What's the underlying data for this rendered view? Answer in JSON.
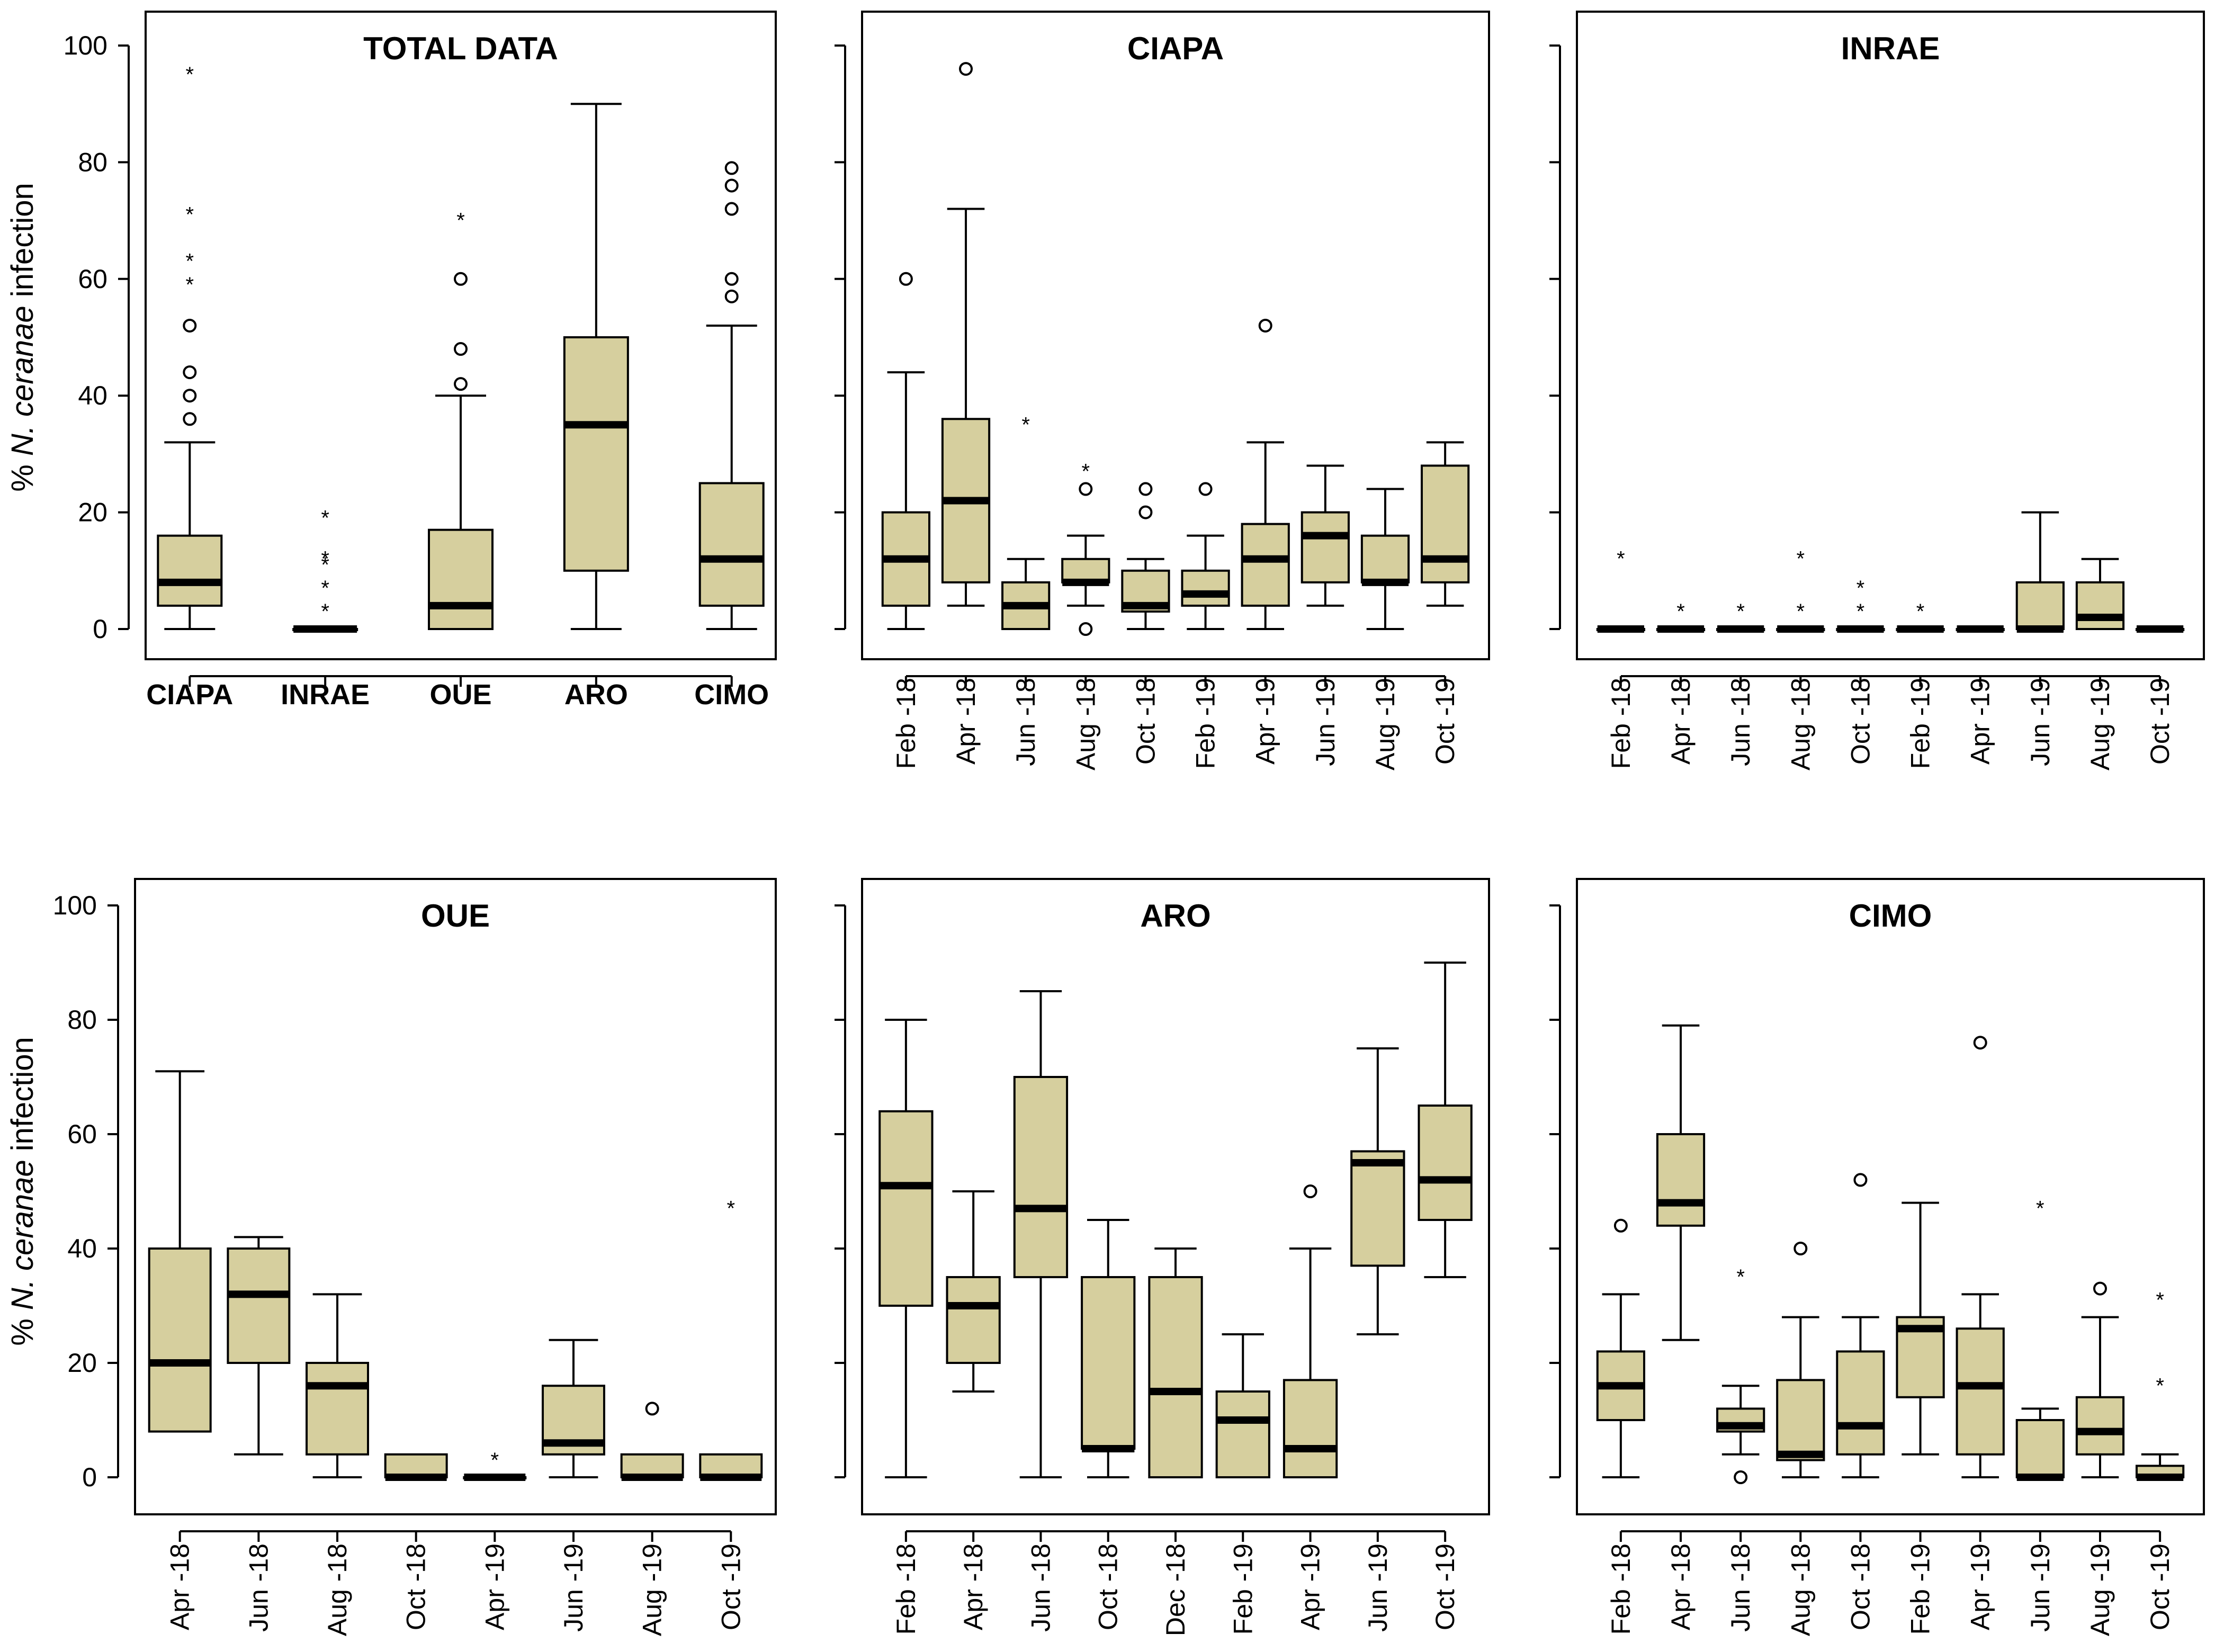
{
  "chart_data": [
    {
      "type": "box",
      "title": "TOTAL DATA",
      "ylabel_prefix": "% ",
      "ylabel_italic": "N. ceranae",
      "ylabel_suffix": " infection",
      "ylim": [
        0,
        100
      ],
      "yticks": [
        "0",
        "20",
        "40",
        "60",
        "80",
        "100"
      ],
      "xlabel_style": "bold",
      "categories": [
        "CIAPA",
        "INRAE",
        "OUE",
        "ARO",
        "CIMO"
      ],
      "boxes": [
        {
          "whislo": 0,
          "q1": 4,
          "med": 8,
          "q3": 16,
          "whishi": 32,
          "circles": [
            36,
            40,
            44,
            52
          ],
          "stars": [
            60,
            64,
            72,
            96
          ]
        },
        {
          "whislo": 0,
          "q1": 0,
          "med": 0,
          "q3": 0,
          "whishi": 0,
          "circles": [],
          "stars": [
            4,
            8,
            12,
            13,
            20
          ]
        },
        {
          "whislo": 0,
          "q1": 0,
          "med": 4,
          "q3": 17,
          "whishi": 40,
          "circles": [
            42,
            48,
            60
          ],
          "stars": [
            71
          ]
        },
        {
          "whislo": 0,
          "q1": 10,
          "med": 35,
          "q3": 50,
          "whishi": 90,
          "circles": [],
          "stars": []
        },
        {
          "whislo": 0,
          "q1": 4,
          "med": 12,
          "q3": 25,
          "whishi": 52,
          "circles": [
            57,
            60,
            72,
            76,
            79
          ],
          "stars": []
        }
      ]
    },
    {
      "type": "box",
      "title": "CIAPA",
      "ylim": [
        0,
        100
      ],
      "categories": [
        "Feb -18",
        "Apr -18",
        "Jun -18",
        "Aug -18",
        "Oct -18",
        "Feb -19",
        "Apr -19",
        "Jun -19",
        "Aug -19",
        "Oct -19"
      ],
      "boxes": [
        {
          "whislo": 0,
          "q1": 4,
          "med": 12,
          "q3": 20,
          "whishi": 44,
          "circles": [
            60
          ],
          "stars": []
        },
        {
          "whislo": 4,
          "q1": 8,
          "med": 22,
          "q3": 36,
          "whishi": 72,
          "circles": [
            96
          ],
          "stars": []
        },
        {
          "whislo": 0,
          "q1": 0,
          "med": 4,
          "q3": 8,
          "whishi": 12,
          "circles": [],
          "stars": [
            36
          ]
        },
        {
          "whislo": 4,
          "q1": 8,
          "med": 8,
          "q3": 12,
          "whishi": 16,
          "circles": [
            0,
            24
          ],
          "stars": [
            28
          ]
        },
        {
          "whislo": 0,
          "q1": 3,
          "med": 4,
          "q3": 10,
          "whishi": 12,
          "circles": [
            20,
            24
          ],
          "stars": []
        },
        {
          "whislo": 0,
          "q1": 4,
          "med": 6,
          "q3": 10,
          "whishi": 16,
          "circles": [
            24
          ],
          "stars": []
        },
        {
          "whislo": 0,
          "q1": 4,
          "med": 12,
          "q3": 18,
          "whishi": 32,
          "circles": [
            52
          ],
          "stars": []
        },
        {
          "whislo": 4,
          "q1": 8,
          "med": 16,
          "q3": 20,
          "whishi": 28,
          "circles": [],
          "stars": []
        },
        {
          "whislo": 0,
          "q1": 8,
          "med": 8,
          "q3": 16,
          "whishi": 24,
          "circles": [],
          "stars": []
        },
        {
          "whislo": 4,
          "q1": 8,
          "med": 12,
          "q3": 28,
          "whishi": 32,
          "circles": [],
          "stars": []
        }
      ]
    },
    {
      "type": "box",
      "title": "INRAE",
      "ylim": [
        0,
        100
      ],
      "categories": [
        "Feb -18",
        "Apr -18",
        "Jun -18",
        "Aug -18",
        "Oct -18",
        "Feb -19",
        "Apr -19",
        "Jun -19",
        "Aug -19",
        "Oct -19"
      ],
      "boxes": [
        {
          "whislo": 0,
          "q1": 0,
          "med": 0,
          "q3": 0,
          "whishi": 0,
          "circles": [],
          "stars": [
            13
          ]
        },
        {
          "whislo": 0,
          "q1": 0,
          "med": 0,
          "q3": 0,
          "whishi": 0,
          "circles": [],
          "stars": [
            4
          ]
        },
        {
          "whislo": 0,
          "q1": 0,
          "med": 0,
          "q3": 0,
          "whishi": 0,
          "circles": [],
          "stars": [
            4
          ]
        },
        {
          "whislo": 0,
          "q1": 0,
          "med": 0,
          "q3": 0,
          "whishi": 0,
          "circles": [],
          "stars": [
            4,
            13
          ]
        },
        {
          "whislo": 0,
          "q1": 0,
          "med": 0,
          "q3": 0,
          "whishi": 0,
          "circles": [],
          "stars": [
            4,
            8
          ]
        },
        {
          "whislo": 0,
          "q1": 0,
          "med": 0,
          "q3": 0,
          "whishi": 0,
          "circles": [],
          "stars": [
            4
          ]
        },
        {
          "whislo": 0,
          "q1": 0,
          "med": 0,
          "q3": 0,
          "whishi": 0,
          "circles": [],
          "stars": []
        },
        {
          "whislo": 0,
          "q1": 0,
          "med": 0,
          "q3": 8,
          "whishi": 20,
          "circles": [],
          "stars": []
        },
        {
          "whislo": 0,
          "q1": 0,
          "med": 2,
          "q3": 8,
          "whishi": 12,
          "circles": [],
          "stars": []
        },
        {
          "whislo": 0,
          "q1": 0,
          "med": 0,
          "q3": 0,
          "whishi": 0,
          "circles": [],
          "stars": []
        }
      ]
    },
    {
      "type": "box",
      "title": "OUE",
      "ylabel_prefix": "% ",
      "ylabel_italic": "N. ceranae",
      "ylabel_suffix": " infection",
      "ylim": [
        0,
        100
      ],
      "yticks": [
        "0",
        "20",
        "40",
        "60",
        "80",
        "100"
      ],
      "categories": [
        "Apr -18",
        "Jun -18",
        "Aug -18",
        "Oct -18",
        "Apr -19",
        "Jun -19",
        "Aug -19",
        "Oct -19"
      ],
      "boxes": [
        {
          "whislo": 8,
          "q1": 8,
          "med": 20,
          "q3": 40,
          "whishi": 71,
          "circles": [],
          "stars": []
        },
        {
          "whislo": 4,
          "q1": 20,
          "med": 32,
          "q3": 40,
          "whishi": 42,
          "circles": [],
          "stars": []
        },
        {
          "whislo": 0,
          "q1": 4,
          "med": 16,
          "q3": 20,
          "whishi": 32,
          "circles": [],
          "stars": []
        },
        {
          "whislo": 0,
          "q1": 0,
          "med": 0,
          "q3": 4,
          "whishi": 4,
          "circles": [],
          "stars": []
        },
        {
          "whislo": 0,
          "q1": 0,
          "med": 0,
          "q3": 0,
          "whishi": 0,
          "circles": [],
          "stars": [
            4
          ]
        },
        {
          "whislo": 0,
          "q1": 4,
          "med": 6,
          "q3": 16,
          "whishi": 24,
          "circles": [],
          "stars": []
        },
        {
          "whislo": 0,
          "q1": 0,
          "med": 0,
          "q3": 4,
          "whishi": 4,
          "circles": [
            12
          ],
          "stars": []
        },
        {
          "whislo": 0,
          "q1": 0,
          "med": 0,
          "q3": 4,
          "whishi": 4,
          "circles": [],
          "stars": [
            48
          ]
        }
      ]
    },
    {
      "type": "box",
      "title": "ARO",
      "ylim": [
        0,
        100
      ],
      "categories": [
        "Feb -18",
        "Apr -18",
        "Jun -18",
        "Oct -18",
        "Dec -18",
        "Feb -19",
        "Apr -19",
        "Jun -19",
        "Oct -19"
      ],
      "boxes": [
        {
          "whislo": 0,
          "q1": 30,
          "med": 51,
          "q3": 64,
          "whishi": 80,
          "circles": [],
          "stars": []
        },
        {
          "whislo": 15,
          "q1": 20,
          "med": 30,
          "q3": 35,
          "whishi": 50,
          "circles": [],
          "stars": []
        },
        {
          "whislo": 0,
          "q1": 35,
          "med": 47,
          "q3": 70,
          "whishi": 85,
          "circles": [],
          "stars": []
        },
        {
          "whislo": 0,
          "q1": 5,
          "med": 5,
          "q3": 35,
          "whishi": 45,
          "circles": [],
          "stars": []
        },
        {
          "whislo": 0,
          "q1": 0,
          "med": 15,
          "q3": 35,
          "whishi": 40,
          "circles": [],
          "stars": []
        },
        {
          "whislo": 0,
          "q1": 0,
          "med": 10,
          "q3": 15,
          "whishi": 25,
          "circles": [],
          "stars": []
        },
        {
          "whislo": 0,
          "q1": 0,
          "med": 5,
          "q3": 17,
          "whishi": 40,
          "circles": [
            50
          ],
          "stars": []
        },
        {
          "whislo": 25,
          "q1": 37,
          "med": 55,
          "q3": 57,
          "whishi": 75,
          "circles": [],
          "stars": []
        },
        {
          "whislo": 35,
          "q1": 45,
          "med": 52,
          "q3": 65,
          "whishi": 90,
          "circles": [],
          "stars": []
        }
      ]
    },
    {
      "type": "box",
      "title": "CIMO",
      "ylim": [
        0,
        100
      ],
      "categories": [
        "Feb -18",
        "Apr -18",
        "Jun -18",
        "Aug -18",
        "Oct -18",
        "Feb -19",
        "Apr -19",
        "Jun -19",
        "Aug -19",
        "Oct -19"
      ],
      "boxes": [
        {
          "whislo": 0,
          "q1": 10,
          "med": 16,
          "q3": 22,
          "whishi": 32,
          "circles": [
            44
          ],
          "stars": []
        },
        {
          "whislo": 24,
          "q1": 44,
          "med": 48,
          "q3": 60,
          "whishi": 79,
          "circles": [],
          "stars": []
        },
        {
          "whislo": 4,
          "q1": 8,
          "med": 9,
          "q3": 12,
          "whishi": 16,
          "circles": [
            0
          ],
          "stars": [
            36
          ]
        },
        {
          "whislo": 0,
          "q1": 3,
          "med": 4,
          "q3": 17,
          "whishi": 28,
          "circles": [
            40
          ],
          "stars": []
        },
        {
          "whislo": 0,
          "q1": 4,
          "med": 9,
          "q3": 22,
          "whishi": 28,
          "circles": [
            52
          ],
          "stars": []
        },
        {
          "whislo": 4,
          "q1": 14,
          "med": 26,
          "q3": 28,
          "whishi": 48,
          "circles": [],
          "stars": []
        },
        {
          "whislo": 0,
          "q1": 4,
          "med": 16,
          "q3": 26,
          "whishi": 32,
          "circles": [
            76
          ],
          "stars": []
        },
        {
          "whislo": 0,
          "q1": 0,
          "med": 0,
          "q3": 10,
          "whishi": 12,
          "circles": [],
          "stars": [
            48
          ]
        },
        {
          "whislo": 0,
          "q1": 4,
          "med": 8,
          "q3": 14,
          "whishi": 28,
          "circles": [
            33
          ],
          "stars": []
        },
        {
          "whislo": 0,
          "q1": 0,
          "med": 0,
          "q3": 2,
          "whishi": 4,
          "circles": [],
          "stars": [
            17,
            32
          ]
        }
      ]
    }
  ]
}
